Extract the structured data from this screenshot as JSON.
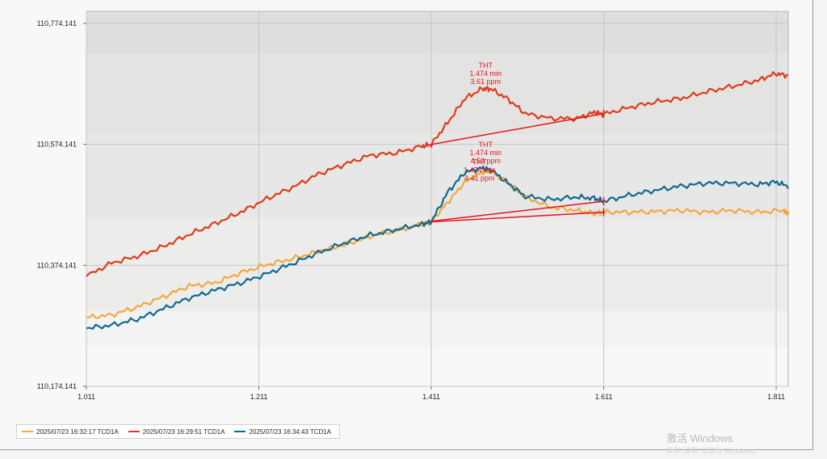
{
  "chart_data": {
    "type": "line",
    "xlim": [
      1.011,
      1.825
    ],
    "ylim": [
      110174.141,
      110794.141
    ],
    "x_ticks": [
      1.011,
      1.211,
      1.411,
      1.611,
      1.811
    ],
    "x_tick_labels": [
      "1.011",
      "1.211",
      "1.411",
      "1.611",
      "1.811"
    ],
    "y_ticks": [
      110174.141,
      110374.141,
      110574.141,
      110774.141
    ],
    "y_tick_labels": [
      "110,174.141",
      "110,374.141",
      "110,574.141",
      "110,774.141"
    ],
    "grid": true,
    "legend_position": "bottom-left",
    "series": [
      {
        "name": "2025/07/23 16:32:17 TCD1A",
        "color": "#f2a93b",
        "points": [
          [
            1.011,
            110288
          ],
          [
            1.04,
            110292
          ],
          [
            1.07,
            110305
          ],
          [
            1.1,
            110322
          ],
          [
            1.13,
            110340
          ],
          [
            1.16,
            110345
          ],
          [
            1.19,
            110362
          ],
          [
            1.22,
            110375
          ],
          [
            1.25,
            110385
          ],
          [
            1.28,
            110397
          ],
          [
            1.31,
            110408
          ],
          [
            1.34,
            110422
          ],
          [
            1.37,
            110432
          ],
          [
            1.4,
            110442
          ],
          [
            1.411,
            110447
          ],
          [
            1.43,
            110478
          ],
          [
            1.45,
            110512
          ],
          [
            1.47,
            110528
          ],
          [
            1.48,
            110530
          ],
          [
            1.5,
            110510
          ],
          [
            1.52,
            110487
          ],
          [
            1.55,
            110470
          ],
          [
            1.58,
            110465
          ],
          [
            1.6,
            110460
          ],
          [
            1.611,
            110462
          ],
          [
            1.64,
            110462
          ],
          [
            1.67,
            110463
          ],
          [
            1.7,
            110465
          ],
          [
            1.73,
            110462
          ],
          [
            1.76,
            110465
          ],
          [
            1.79,
            110462
          ],
          [
            1.82,
            110465
          ],
          [
            1.825,
            110459
          ]
        ]
      },
      {
        "name": "2025/07/23 16:29:51 TCD1A",
        "color": "#e03c1b",
        "points": [
          [
            1.011,
            110356
          ],
          [
            1.04,
            110378
          ],
          [
            1.07,
            110389
          ],
          [
            1.1,
            110405
          ],
          [
            1.13,
            110425
          ],
          [
            1.16,
            110443
          ],
          [
            1.19,
            110462
          ],
          [
            1.22,
            110484
          ],
          [
            1.25,
            110503
          ],
          [
            1.28,
            110525
          ],
          [
            1.31,
            110541
          ],
          [
            1.34,
            110556
          ],
          [
            1.37,
            110560
          ],
          [
            1.4,
            110571
          ],
          [
            1.411,
            110574
          ],
          [
            1.43,
            110610
          ],
          [
            1.45,
            110650
          ],
          [
            1.47,
            110666
          ],
          [
            1.48,
            110666
          ],
          [
            1.5,
            110649
          ],
          [
            1.52,
            110625
          ],
          [
            1.55,
            110617
          ],
          [
            1.58,
            110617
          ],
          [
            1.6,
            110627
          ],
          [
            1.611,
            110624
          ],
          [
            1.64,
            110635
          ],
          [
            1.67,
            110644
          ],
          [
            1.7,
            110650
          ],
          [
            1.73,
            110661
          ],
          [
            1.76,
            110670
          ],
          [
            1.79,
            110680
          ],
          [
            1.81,
            110691
          ],
          [
            1.825,
            110688
          ]
        ]
      },
      {
        "name": "2025/07/23 16:34:43 TCD1A",
        "color": "#136894",
        "points": [
          [
            1.011,
            110270
          ],
          [
            1.04,
            110275
          ],
          [
            1.07,
            110285
          ],
          [
            1.1,
            110302
          ],
          [
            1.13,
            110320
          ],
          [
            1.16,
            110333
          ],
          [
            1.19,
            110345
          ],
          [
            1.22,
            110360
          ],
          [
            1.25,
            110377
          ],
          [
            1.28,
            110395
          ],
          [
            1.31,
            110411
          ],
          [
            1.34,
            110424
          ],
          [
            1.37,
            110433
          ],
          [
            1.4,
            110442
          ],
          [
            1.411,
            110446
          ],
          [
            1.43,
            110495
          ],
          [
            1.45,
            110528
          ],
          [
            1.47,
            110535
          ],
          [
            1.48,
            110532
          ],
          [
            1.5,
            110510
          ],
          [
            1.52,
            110488
          ],
          [
            1.55,
            110483
          ],
          [
            1.58,
            110487
          ],
          [
            1.6,
            110485
          ],
          [
            1.611,
            110480
          ],
          [
            1.64,
            110490
          ],
          [
            1.67,
            110498
          ],
          [
            1.7,
            110505
          ],
          [
            1.73,
            110510
          ],
          [
            1.76,
            110510
          ],
          [
            1.79,
            110508
          ],
          [
            1.81,
            110512
          ],
          [
            1.825,
            110505
          ]
        ]
      }
    ],
    "baselines": [
      {
        "color": "#e8141c",
        "from": [
          1.411,
          110574
        ],
        "to": [
          1.611,
          110625
        ]
      },
      {
        "color": "#e8141c",
        "from": [
          1.411,
          110447
        ],
        "to": [
          1.611,
          110480
        ]
      },
      {
        "color": "#e8141c",
        "from": [
          1.411,
          110446
        ],
        "to": [
          1.611,
          110462
        ]
      }
    ],
    "annotations": [
      {
        "lines": [
          "THT",
          "1.474 min",
          "3.61 ppm"
        ],
        "x": 1.474,
        "y": 110666
      },
      {
        "lines": [
          "THT",
          "1.474 min",
          "4.59 ppm"
        ],
        "x": 1.474,
        "y": 110535
      },
      {
        "lines": [
          "THT",
          "1.474 min",
          "4.41 ppm"
        ],
        "x": 1.467,
        "y": 110506
      }
    ]
  },
  "watermark": {
    "title": "激活 Windows",
    "subtitle": "转到\"设置\"以激活 Windows。"
  }
}
